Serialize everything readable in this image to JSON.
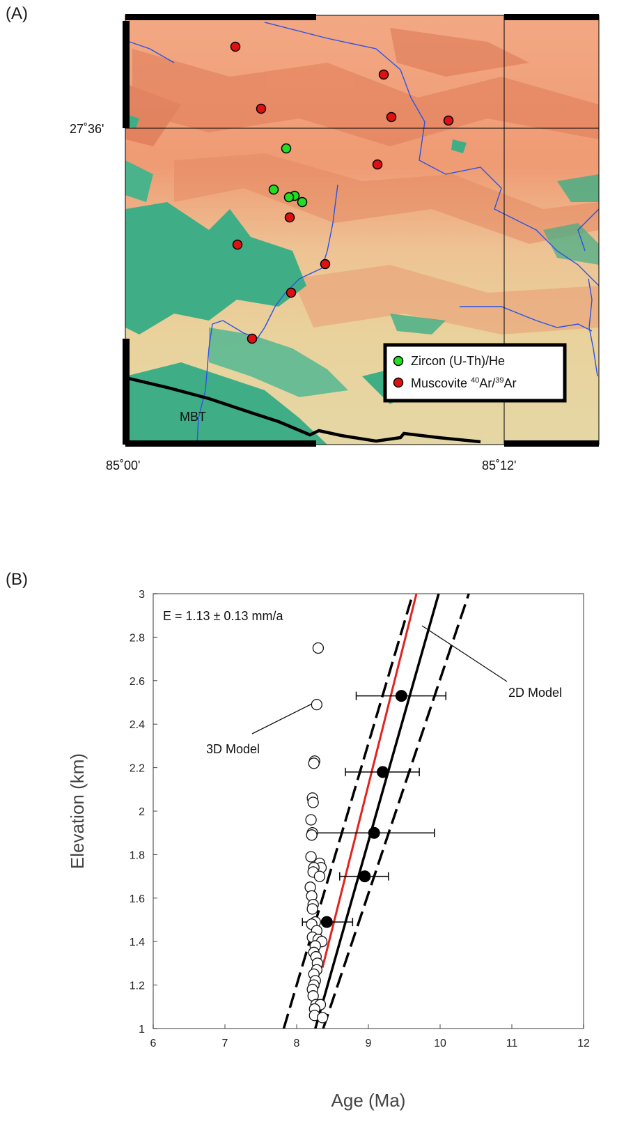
{
  "panel_a": {
    "label": "(A)",
    "lat_label": "27˚36'",
    "lon_labels": [
      "85˚00'",
      "85˚12'"
    ],
    "fault_label": "MBT",
    "legend": [
      {
        "label": "Zircon (U-Th)/He",
        "color": "#22dd22"
      },
      {
        "label_pre": "Muscovite ",
        "sup1": "40",
        "mid": "Ar/",
        "sup2": "39",
        "post": "Ar",
        "color": "#dd1111"
      }
    ],
    "colors": {
      "low": "#3fae86",
      "mid": "#e6cf95",
      "high": "#f0a07a",
      "river": "#2a52e6",
      "fault": "#000000"
    }
  },
  "panel_b": {
    "label": "(B)",
    "annotation_e": "E = 1.13 ± 0.13 mm/a",
    "label_3d": "3D Model",
    "label_2d": "2D Model"
  },
  "chart_data": {
    "type": "scatter",
    "xlabel": "Age (Ma)",
    "ylabel": "Elevation (km)",
    "xlim": [
      6,
      12
    ],
    "ylim": [
      1,
      3
    ],
    "x_ticks": [
      "6",
      "7",
      "8",
      "9",
      "10",
      "11",
      "12"
    ],
    "y_ticks": [
      "1",
      "1.2",
      "1.4",
      "1.6",
      "1.8",
      "2",
      "2.2",
      "2.4",
      "2.6",
      "2.8",
      "3"
    ],
    "grid": false,
    "series": [
      {
        "marker": "filled",
        "points": [
          {
            "x": 8.42,
            "y": 1.49,
            "xerr": [
              8.08,
              8.78
            ]
          },
          {
            "x": 8.95,
            "y": 1.7,
            "xerr": [
              8.6,
              9.28
            ]
          },
          {
            "x": 9.08,
            "y": 1.9,
            "xerr": [
              8.25,
              9.92
            ]
          },
          {
            "x": 9.2,
            "y": 2.18,
            "xerr": [
              8.68,
              9.71
            ]
          },
          {
            "x": 9.46,
            "y": 2.53,
            "xerr": [
              8.83,
              10.08
            ]
          }
        ]
      },
      {
        "marker": "open",
        "points": [
          {
            "x": 8.3,
            "y": 2.75
          },
          {
            "x": 8.28,
            "y": 2.49
          },
          {
            "x": 8.25,
            "y": 2.23
          },
          {
            "x": 8.24,
            "y": 2.22
          },
          {
            "x": 8.22,
            "y": 2.06
          },
          {
            "x": 8.23,
            "y": 2.04
          },
          {
            "x": 8.2,
            "y": 1.96
          },
          {
            "x": 8.22,
            "y": 1.9
          },
          {
            "x": 8.21,
            "y": 1.89
          },
          {
            "x": 8.2,
            "y": 1.79
          },
          {
            "x": 8.32,
            "y": 1.76
          },
          {
            "x": 8.34,
            "y": 1.74
          },
          {
            "x": 8.24,
            "y": 1.74
          },
          {
            "x": 8.23,
            "y": 1.72
          },
          {
            "x": 8.32,
            "y": 1.7
          },
          {
            "x": 8.19,
            "y": 1.65
          },
          {
            "x": 8.21,
            "y": 1.61
          },
          {
            "x": 8.23,
            "y": 1.57
          },
          {
            "x": 8.22,
            "y": 1.55
          },
          {
            "x": 8.26,
            "y": 1.49
          },
          {
            "x": 8.21,
            "y": 1.48
          },
          {
            "x": 8.28,
            "y": 1.45
          },
          {
            "x": 8.22,
            "y": 1.42
          },
          {
            "x": 8.3,
            "y": 1.41
          },
          {
            "x": 8.35,
            "y": 1.4
          },
          {
            "x": 8.26,
            "y": 1.38
          },
          {
            "x": 8.24,
            "y": 1.35
          },
          {
            "x": 8.27,
            "y": 1.33
          },
          {
            "x": 8.29,
            "y": 1.3
          },
          {
            "x": 8.28,
            "y": 1.27
          },
          {
            "x": 8.24,
            "y": 1.25
          },
          {
            "x": 8.26,
            "y": 1.22
          },
          {
            "x": 8.24,
            "y": 1.2
          },
          {
            "x": 8.22,
            "y": 1.18
          },
          {
            "x": 8.23,
            "y": 1.15
          },
          {
            "x": 8.27,
            "y": 1.11
          },
          {
            "x": 8.33,
            "y": 1.11
          },
          {
            "x": 8.25,
            "y": 1.09
          },
          {
            "x": 8.25,
            "y": 1.06
          },
          {
            "x": 8.36,
            "y": 1.05
          }
        ]
      }
    ],
    "lines": [
      {
        "style": "solid",
        "color": "#e0231f",
        "from": [
          8.36,
          1.28
        ],
        "to": [
          9.67,
          3.0
        ]
      },
      {
        "style": "solid",
        "color": "#000000",
        "from": [
          8.26,
          1.0
        ],
        "to": [
          9.98,
          3.0
        ]
      },
      {
        "style": "dashed",
        "color": "#000000",
        "from": [
          7.82,
          1.0
        ],
        "to": [
          9.62,
          3.0
        ]
      },
      {
        "style": "dashed",
        "color": "#000000",
        "from": [
          8.37,
          1.0
        ],
        "to": [
          10.4,
          3.0
        ]
      }
    ]
  }
}
